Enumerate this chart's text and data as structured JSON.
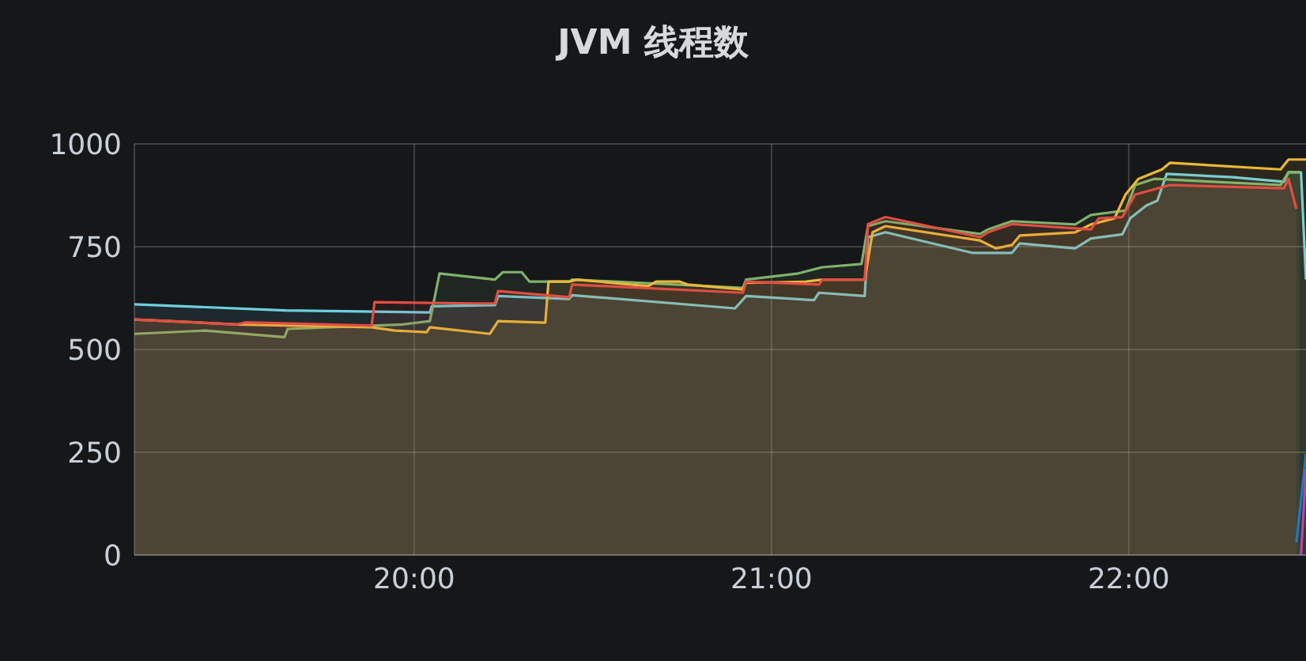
{
  "chart_data": {
    "type": "area",
    "title": "JVM 线程数",
    "xlim": [
      19.217,
      22.496
    ],
    "xticks": [
      {
        "value": 20,
        "label": "20:00"
      },
      {
        "value": 21,
        "label": "21:00"
      },
      {
        "value": 22,
        "label": "22:00"
      }
    ],
    "ylim": [
      0,
      1000
    ],
    "yticks": [
      0,
      250,
      500,
      750,
      1000
    ],
    "grid": true,
    "series": [
      {
        "color": "#6ed0e0",
        "x": [
          19.217,
          19.64,
          20.044,
          20.049,
          20.226,
          20.235,
          20.434,
          20.442,
          20.898,
          20.929,
          21.119,
          21.133,
          21.261,
          21.27,
          21.319,
          21.562,
          21.673,
          21.695,
          21.85,
          21.894,
          21.982,
          22.004,
          22.049,
          22.08,
          22.106,
          22.292,
          22.434,
          22.447,
          22.482,
          22.496
        ],
        "values": [
          610,
          595,
          590,
          605,
          608,
          630,
          623,
          632,
          600,
          630,
          620,
          638,
          630,
          773,
          785,
          735,
          735,
          758,
          746,
          770,
          780,
          819,
          850,
          862,
          927,
          919,
          908,
          931,
          931,
          670
        ]
      },
      {
        "color": "#7eb26d",
        "x": [
          19.217,
          19.416,
          19.637,
          19.646,
          19.969,
          20.044,
          20.071,
          20.226,
          20.248,
          20.301,
          20.323,
          20.434,
          20.442,
          20.92,
          20.929,
          21.075,
          21.142,
          21.252,
          21.27,
          21.319,
          21.584,
          21.606,
          21.673,
          21.85,
          21.894,
          21.991,
          22.018,
          22.071,
          22.425,
          22.447,
          22.478
        ],
        "values": [
          538,
          546,
          530,
          550,
          561,
          569,
          685,
          670,
          688,
          688,
          665,
          665,
          670,
          650,
          670,
          685,
          700,
          708,
          800,
          812,
          781,
          792,
          812,
          804,
          827,
          838,
          900,
          915,
          900,
          931,
          931
        ]
      },
      {
        "color": "#eab839",
        "x": [
          19.217,
          19.504,
          19.881,
          19.947,
          20.035,
          20.044,
          20.212,
          20.235,
          20.367,
          20.376,
          20.434,
          20.456,
          20.655,
          20.677,
          20.743,
          20.765,
          20.92,
          20.929,
          21.097,
          21.142,
          21.261,
          21.283,
          21.319,
          21.584,
          21.628,
          21.673,
          21.695,
          21.85,
          21.894,
          21.96,
          21.991,
          22.027,
          22.093,
          22.115,
          22.425,
          22.447,
          22.496
        ],
        "values": [
          573,
          561,
          554,
          546,
          542,
          554,
          538,
          569,
          565,
          665,
          665,
          670,
          654,
          665,
          665,
          658,
          646,
          662,
          665,
          670,
          670,
          785,
          800,
          765,
          746,
          754,
          777,
          785,
          804,
          819,
          877,
          915,
          938,
          954,
          938,
          962,
          962
        ]
      },
      {
        "color": "#e24d42",
        "x": [
          19.217,
          19.504,
          19.527,
          19.881,
          19.889,
          20.168,
          20.226,
          20.235,
          20.434,
          20.442,
          20.92,
          20.929,
          21.133,
          21.142,
          21.261,
          21.27,
          21.319,
          21.584,
          21.606,
          21.673,
          21.894,
          21.916,
          21.982,
          22.018,
          22.115,
          22.434,
          22.447,
          22.469
        ],
        "values": [
          573,
          561,
          566,
          558,
          615,
          612,
          612,
          642,
          627,
          658,
          638,
          665,
          658,
          670,
          670,
          805,
          822,
          773,
          785,
          805,
          792,
          819,
          822,
          877,
          900,
          892,
          915,
          842
        ]
      },
      {
        "type": "line",
        "color": "#1f78c1",
        "x": [
          22.469,
          22.496
        ],
        "values": [
          30,
          246
        ]
      },
      {
        "type": "line",
        "color": "#ba43a9",
        "x": [
          22.482,
          22.496
        ],
        "values": [
          0,
          208
        ]
      }
    ]
  }
}
